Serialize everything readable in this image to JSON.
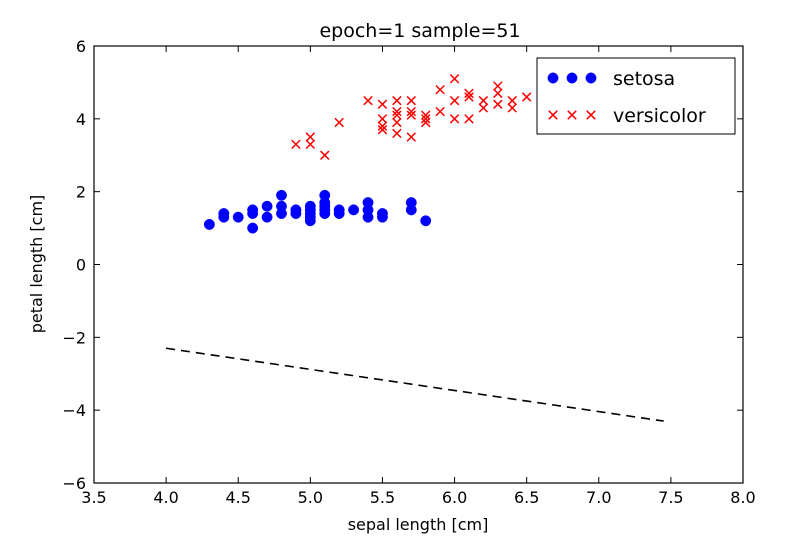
{
  "chart_data": {
    "type": "scatter",
    "title": "epoch=1  sample=51",
    "xlabel": "sepal length [cm]",
    "ylabel": "petal length [cm]",
    "xlim": [
      3.5,
      8.0
    ],
    "ylim": [
      -6,
      6
    ],
    "x_ticks": [
      3.5,
      4.0,
      4.5,
      5.0,
      5.5,
      6.0,
      6.5,
      7.0,
      7.5,
      8.0
    ],
    "x_tick_labels": [
      "3.5",
      "4.0",
      "4.5",
      "5.0",
      "5.5",
      "6.0",
      "6.5",
      "7.0",
      "7.5",
      "8.0"
    ],
    "y_ticks": [
      -6,
      -4,
      -2,
      0,
      2,
      4,
      6
    ],
    "y_tick_labels": [
      "−6",
      "−4",
      "−2",
      "0",
      "2",
      "4",
      "6"
    ],
    "grid": false,
    "legend_position": "top-right",
    "series": [
      {
        "name": "setosa",
        "marker": "circle",
        "color": "#0000ff",
        "points": [
          [
            4.3,
            1.1
          ],
          [
            4.4,
            1.3
          ],
          [
            4.4,
            1.4
          ],
          [
            4.5,
            1.3
          ],
          [
            4.6,
            1.0
          ],
          [
            4.6,
            1.4
          ],
          [
            4.6,
            1.5
          ],
          [
            4.7,
            1.3
          ],
          [
            4.7,
            1.6
          ],
          [
            4.8,
            1.4
          ],
          [
            4.8,
            1.6
          ],
          [
            4.8,
            1.9
          ],
          [
            4.9,
            1.4
          ],
          [
            4.9,
            1.5
          ],
          [
            5.0,
            1.2
          ],
          [
            5.0,
            1.3
          ],
          [
            5.0,
            1.4
          ],
          [
            5.0,
            1.5
          ],
          [
            5.0,
            1.6
          ],
          [
            5.1,
            1.4
          ],
          [
            5.1,
            1.5
          ],
          [
            5.1,
            1.6
          ],
          [
            5.1,
            1.7
          ],
          [
            5.1,
            1.9
          ],
          [
            5.2,
            1.4
          ],
          [
            5.2,
            1.5
          ],
          [
            5.3,
            1.5
          ],
          [
            5.4,
            1.3
          ],
          [
            5.4,
            1.5
          ],
          [
            5.4,
            1.7
          ],
          [
            5.5,
            1.3
          ],
          [
            5.5,
            1.4
          ],
          [
            5.7,
            1.5
          ],
          [
            5.7,
            1.7
          ],
          [
            5.8,
            1.2
          ]
        ]
      },
      {
        "name": "versicolor",
        "marker": "x",
        "color": "#ff0000",
        "points": [
          [
            4.9,
            3.3
          ],
          [
            5.0,
            3.3
          ],
          [
            5.0,
            3.5
          ],
          [
            5.1,
            3.0
          ],
          [
            5.2,
            3.9
          ],
          [
            5.4,
            4.5
          ],
          [
            5.5,
            3.7
          ],
          [
            5.5,
            3.8
          ],
          [
            5.5,
            4.0
          ],
          [
            5.5,
            4.4
          ],
          [
            5.6,
            3.6
          ],
          [
            5.6,
            3.9
          ],
          [
            5.6,
            4.1
          ],
          [
            5.6,
            4.2
          ],
          [
            5.6,
            4.5
          ],
          [
            5.7,
            3.5
          ],
          [
            5.7,
            4.1
          ],
          [
            5.7,
            4.2
          ],
          [
            5.7,
            4.5
          ],
          [
            5.8,
            3.9
          ],
          [
            5.8,
            4.0
          ],
          [
            5.8,
            4.1
          ],
          [
            5.9,
            4.2
          ],
          [
            5.9,
            4.8
          ],
          [
            6.0,
            4.0
          ],
          [
            6.0,
            4.5
          ],
          [
            6.0,
            5.1
          ],
          [
            6.1,
            4.0
          ],
          [
            6.1,
            4.6
          ],
          [
            6.1,
            4.7
          ],
          [
            6.2,
            4.3
          ],
          [
            6.2,
            4.5
          ],
          [
            6.3,
            4.4
          ],
          [
            6.3,
            4.7
          ],
          [
            6.3,
            4.9
          ],
          [
            6.4,
            4.3
          ],
          [
            6.4,
            4.5
          ],
          [
            6.5,
            4.6
          ]
        ]
      }
    ],
    "lines": [
      {
        "style": "dashed",
        "color": "#000000",
        "points": [
          [
            4.0,
            -2.3
          ],
          [
            7.45,
            -4.3
          ]
        ]
      }
    ]
  }
}
